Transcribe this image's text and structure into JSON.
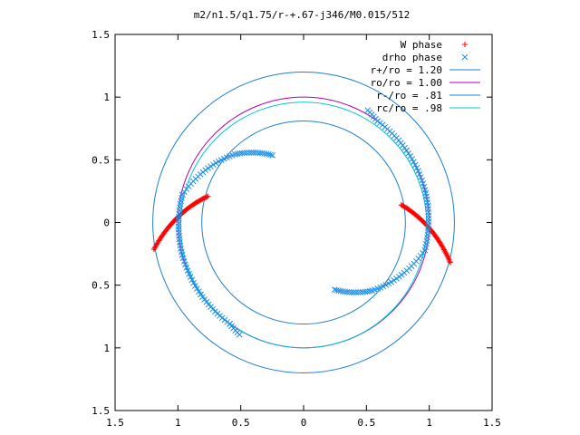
{
  "chart_data": {
    "type": "scatter",
    "title": "m2/n1.5/q1.75/r-+.67-j346/M0.015/512",
    "xlim": [
      -1.5,
      1.5
    ],
    "ylim": [
      -1.5,
      1.5
    ],
    "xticks": [
      -1.5,
      -1,
      -0.5,
      0,
      0.5,
      1,
      1.5
    ],
    "xtick_labels": [
      "1.5",
      "1",
      "0.5",
      "0",
      "0.5",
      "1",
      "1.5"
    ],
    "yticks": [
      1.5,
      1,
      0.5,
      0,
      -0.5,
      -1,
      -1.5
    ],
    "ytick_labels": [
      "1.5",
      "1",
      "0.5",
      "0",
      "0.5",
      "1",
      "1.5"
    ],
    "grid": false,
    "legend_position": "top-right",
    "circles": [
      {
        "name": "r+/ro = 1.20",
        "radius": 1.2,
        "cx": 0.0,
        "cy": 0.0,
        "color": "#1f7fd0"
      },
      {
        "name": "ro/ro = 1.00",
        "radius": 1.0,
        "cx": 0.0,
        "cy": 0.0,
        "color": "#b000b0"
      },
      {
        "name": "r-/ro = .81",
        "radius": 0.81,
        "cx": 0.0,
        "cy": 0.0,
        "color": "#1f7fd0"
      },
      {
        "name": "rc/ro = .98",
        "radius": 0.98,
        "cx": 0.0,
        "cy": -0.02,
        "color": "#00c8d0"
      }
    ],
    "series": [
      {
        "name": "W phase",
        "marker": "+",
        "color": "#ff0000",
        "segments": [
          {
            "r_start": 1.21,
            "r_end": 0.79,
            "theta_start_deg": 190.2,
            "theta_end_deg": 164.7,
            "points": 60
          },
          {
            "r_start": 0.79,
            "r_end": 1.21,
            "theta_start_deg": 10.2,
            "theta_end_deg": -15.3,
            "points": 60
          }
        ]
      },
      {
        "name": "drho phase",
        "marker": "x",
        "color": "#1f90e8",
        "segments": [
          {
            "r_start": 0.59,
            "r_end": 0.77,
            "theta_start_deg": 294.8,
            "theta_end_deg": 315.1,
            "points": 18
          },
          {
            "r_start": 0.77,
            "r_end": 0.99,
            "theta_start_deg": 315.1,
            "theta_end_deg": 347.1,
            "points": 22
          },
          {
            "r_start": 0.99,
            "r_end": 1.0,
            "theta_start_deg": 347.1,
            "theta_end_deg": 375.0,
            "points": 20
          },
          {
            "r_start": 1.0,
            "r_end": 1.0,
            "theta_start_deg": 375.0,
            "theta_end_deg": 395.0,
            "points": 14
          },
          {
            "r_start": 1.0,
            "r_end": 1.0,
            "theta_start_deg": 395.0,
            "theta_end_deg": 414.0,
            "points": 14
          },
          {
            "r_start": 1.0,
            "r_end": 1.03,
            "theta_start_deg": 414.0,
            "theta_end_deg": 420.3,
            "points": 6
          },
          {
            "r_start": 0.59,
            "r_end": 0.77,
            "theta_start_deg": 114.8,
            "theta_end_deg": 135.1,
            "points": 18
          },
          {
            "r_start": 0.77,
            "r_end": 0.99,
            "theta_start_deg": 135.1,
            "theta_end_deg": 167.1,
            "points": 22
          },
          {
            "r_start": 0.99,
            "r_end": 1.0,
            "theta_start_deg": 167.1,
            "theta_end_deg": 195.0,
            "points": 20
          },
          {
            "r_start": 1.0,
            "r_end": 1.0,
            "theta_start_deg": 195.0,
            "theta_end_deg": 215.0,
            "points": 14
          },
          {
            "r_start": 1.0,
            "r_end": 1.0,
            "theta_start_deg": 215.0,
            "theta_end_deg": 234.0,
            "points": 14
          },
          {
            "r_start": 1.0,
            "r_end": 1.03,
            "theta_start_deg": 234.0,
            "theta_end_deg": 240.3,
            "points": 6
          }
        ]
      }
    ]
  }
}
